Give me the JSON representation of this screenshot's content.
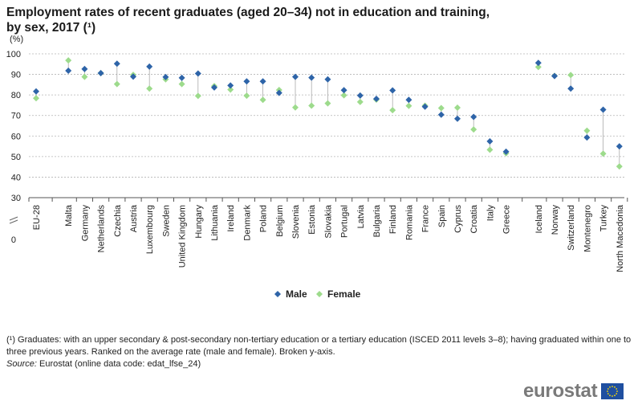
{
  "header": {
    "title_line1": "Employment rates of recent graduates (aged 20–34) not in education and training,",
    "title_line2": "by sex, 2017 (¹)"
  },
  "footnote": {
    "text": "(¹) Graduates: with an upper secondary & post-secondary non-tertiary education or a tertiary education (ISCED 2011 levels 3–8); having graduated within one to three previous years. Ranked on the average rate (male and female). Broken y-axis.",
    "source_label": "Source:",
    "source_text": "Eurostat (online data code: edat_lfse_24)"
  },
  "brand": {
    "name": "eurostat",
    "flag_icon": "eu-flag-icon"
  },
  "chart_data": {
    "type": "scatter",
    "unit_label": "(%)",
    "yticks": [
      30,
      40,
      50,
      60,
      70,
      80,
      90,
      100
    ],
    "y_axis_break_label": "0",
    "ylim": [
      30,
      100
    ],
    "broken_y_axis": true,
    "grid": true,
    "legend_position": "bottom-center",
    "colors": {
      "male": "#2e64a8",
      "female": "#9ddb8c",
      "connector": "#aaaaaa"
    },
    "categories": [
      "EU-28",
      "Malta",
      "Germany",
      "Netherlands",
      "Czechia",
      "Austria",
      "Luxembourg",
      "Sweden",
      "United Kingdom",
      "Hungary",
      "Lithuania",
      "Ireland",
      "Denmark",
      "Poland",
      "Belgium",
      "Slovenia",
      "Estonia",
      "Slovakia",
      "Portugal",
      "Latvia",
      "Bulgaria",
      "Finland",
      "Romania",
      "France",
      "Spain",
      "Cyprus",
      "Croatia",
      "Italy",
      "Greece",
      "Iceland",
      "Norway",
      "Switzerland",
      "Montenegro",
      "Turkey",
      "North Macedonia"
    ],
    "series": [
      {
        "name": "Male",
        "values": [
          81.7,
          91.8,
          92.6,
          90.6,
          95.2,
          88.9,
          93.8,
          88.7,
          88.3,
          90.4,
          83.6,
          84.6,
          86.6,
          86.6,
          81.0,
          88.8,
          88.4,
          87.6,
          82.3,
          79.7,
          78.1,
          82.2,
          77.6,
          74.3,
          70.4,
          68.4,
          69.3,
          57.4,
          52.4,
          95.6,
          89.2,
          83.1,
          59.3,
          72.8,
          55.0
        ]
      },
      {
        "name": "Female",
        "values": [
          78.4,
          96.8,
          88.8,
          90.6,
          85.3,
          89.8,
          83.1,
          87.6,
          85.3,
          79.5,
          84.3,
          82.6,
          79.6,
          77.6,
          82.4,
          73.9,
          74.8,
          75.9,
          79.8,
          76.6,
          77.7,
          72.6,
          74.7,
          74.8,
          73.6,
          73.8,
          63.2,
          53.3,
          51.6,
          93.6,
          89.3,
          89.7,
          62.6,
          51.4,
          45.2
        ]
      }
    ]
  }
}
